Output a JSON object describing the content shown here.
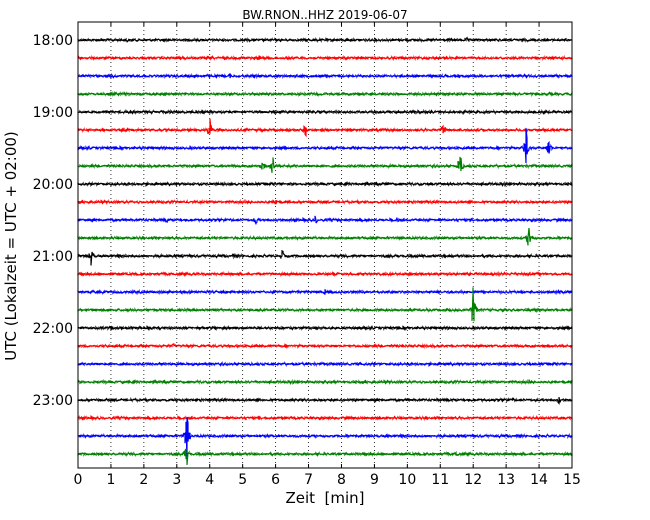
{
  "chart_data": {
    "type": "line",
    "title": "BW.RNON..HHZ 2019-06-07",
    "xlabel": "Zeit  [min]",
    "ylabel": "UTC (Lokalzeit = UTC + 02:00)",
    "xlim": [
      0,
      15
    ],
    "x_ticks": [
      "0",
      "1",
      "2",
      "3",
      "4",
      "5",
      "6",
      "7",
      "8",
      "9",
      "10",
      "11",
      "12",
      "13",
      "14",
      "15"
    ],
    "y_tick_labels": [
      "18:00",
      "19:00",
      "20:00",
      "21:00",
      "22:00",
      "23:00"
    ],
    "grid": "vertical dotted",
    "colors": [
      "#000000",
      "#ff0000",
      "#0000ff",
      "#008000"
    ],
    "traces": [
      {
        "start": "18:00",
        "color": "#000000",
        "noise": 0.9,
        "events": [
          {
            "min": 1.5,
            "amp": 4
          },
          {
            "min": 11.8,
            "amp": 3
          }
        ]
      },
      {
        "start": "18:15",
        "color": "#ff0000",
        "noise": 0.9,
        "events": [
          {
            "min": 5.5,
            "amp": 3
          }
        ]
      },
      {
        "start": "18:30",
        "color": "#0000ff",
        "noise": 0.9,
        "events": [
          {
            "min": 4.6,
            "amp": 3
          }
        ]
      },
      {
        "start": "18:45",
        "color": "#008000",
        "noise": 0.9,
        "events": []
      },
      {
        "start": "19:00",
        "color": "#000000",
        "noise": 0.9,
        "events": [
          {
            "min": 2.8,
            "amp": 3
          }
        ]
      },
      {
        "start": "19:15",
        "color": "#ff0000",
        "noise": 0.9,
        "events": [
          {
            "min": 4.0,
            "amp": 16
          },
          {
            "min": 6.9,
            "amp": 10
          },
          {
            "min": 11.1,
            "amp": 9
          }
        ]
      },
      {
        "start": "19:30",
        "color": "#0000ff",
        "noise": 0.9,
        "events": [
          {
            "min": 13.6,
            "amp": 22
          },
          {
            "min": 14.3,
            "amp": 12
          }
        ]
      },
      {
        "start": "19:45",
        "color": "#008000",
        "noise": 0.9,
        "events": [
          {
            "min": 5.6,
            "amp": 7
          },
          {
            "min": 5.9,
            "amp": 14
          },
          {
            "min": 11.6,
            "amp": 22
          }
        ]
      },
      {
        "start": "20:00",
        "color": "#000000",
        "noise": 0.9,
        "events": [
          {
            "min": 9.4,
            "amp": 3
          }
        ]
      },
      {
        "start": "20:15",
        "color": "#ff0000",
        "noise": 0.9,
        "events": [
          {
            "min": 6.0,
            "amp": 7
          }
        ]
      },
      {
        "start": "20:30",
        "color": "#0000ff",
        "noise": 0.9,
        "events": [
          {
            "min": 2.7,
            "amp": 4
          },
          {
            "min": 5.4,
            "amp": 7
          },
          {
            "min": 7.2,
            "amp": 6
          },
          {
            "min": 9.7,
            "amp": 4
          }
        ]
      },
      {
        "start": "20:45",
        "color": "#008000",
        "noise": 0.9,
        "events": [
          {
            "min": 13.7,
            "amp": 18
          }
        ]
      },
      {
        "start": "21:00",
        "color": "#000000",
        "noise": 0.9,
        "events": [
          {
            "min": 0.4,
            "amp": 12
          },
          {
            "min": 4.7,
            "amp": 3
          },
          {
            "min": 6.2,
            "amp": 8
          }
        ]
      },
      {
        "start": "21:15",
        "color": "#ff0000",
        "noise": 0.9,
        "events": []
      },
      {
        "start": "21:30",
        "color": "#0000ff",
        "noise": 0.9,
        "events": [
          {
            "min": 7.5,
            "amp": 4
          }
        ]
      },
      {
        "start": "21:45",
        "color": "#008000",
        "noise": 0.9,
        "events": [
          {
            "min": 12.0,
            "amp": 26
          }
        ]
      },
      {
        "start": "22:00",
        "color": "#000000",
        "noise": 0.9,
        "events": [
          {
            "min": 1.0,
            "amp": 3
          }
        ]
      },
      {
        "start": "22:15",
        "color": "#ff0000",
        "noise": 0.9,
        "events": [
          {
            "min": 2.9,
            "amp": 3
          }
        ]
      },
      {
        "start": "22:30",
        "color": "#0000ff",
        "noise": 0.9,
        "events": []
      },
      {
        "start": "22:45",
        "color": "#008000",
        "noise": 0.9,
        "events": [
          {
            "min": 13.7,
            "amp": 3
          }
        ]
      },
      {
        "start": "23:00",
        "color": "#000000",
        "noise": 0.9,
        "events": [
          {
            "min": 13.2,
            "amp": 3
          },
          {
            "min": 14.6,
            "amp": 6
          }
        ]
      },
      {
        "start": "23:15",
        "color": "#ff0000",
        "noise": 0.9,
        "events": [
          {
            "min": 5.5,
            "amp": 3
          }
        ]
      },
      {
        "start": "23:30",
        "color": "#0000ff",
        "noise": 0.9,
        "events": [
          {
            "min": 3.3,
            "amp": 32
          },
          {
            "min": 9.4,
            "amp": 3
          }
        ]
      },
      {
        "start": "23:45",
        "color": "#008000",
        "noise": 0.9,
        "events": [
          {
            "min": 3.3,
            "amp": 14
          },
          {
            "min": 11.5,
            "amp": 4
          }
        ]
      }
    ]
  }
}
